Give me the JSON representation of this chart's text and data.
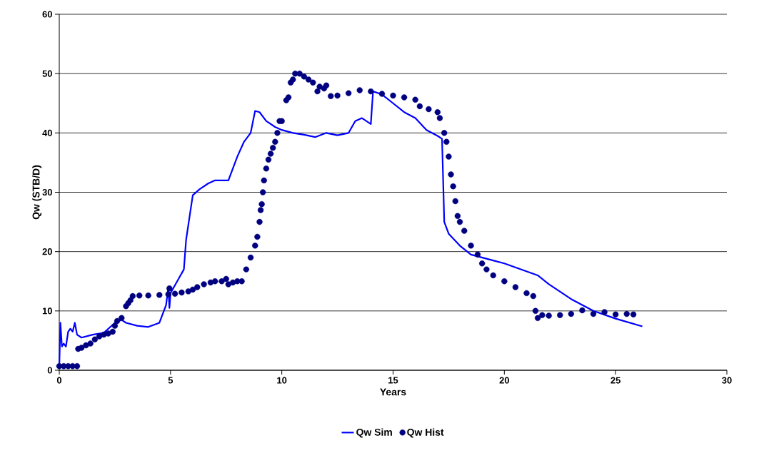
{
  "chart_data": {
    "type": "line",
    "xlabel": "Years",
    "ylabel": "Qw (STB/D)",
    "xlim": [
      0,
      30
    ],
    "ylim": [
      0,
      60
    ],
    "xticks": [
      0,
      5,
      10,
      15,
      20,
      25,
      30
    ],
    "yticks": [
      0,
      10,
      20,
      30,
      40,
      50,
      60
    ],
    "grid": "y",
    "legend": "bottom",
    "series": [
      {
        "name": "Qw Sim",
        "color": "#0000ff",
        "marker": "none",
        "x": [
          0,
          0.05,
          0.12,
          0.2,
          0.3,
          0.4,
          0.5,
          0.6,
          0.7,
          0.8,
          1.0,
          1.5,
          2.0,
          2.5,
          2.8,
          3.0,
          3.5,
          4.0,
          4.5,
          4.8,
          4.9,
          4.95,
          5.0,
          5.3,
          5.6,
          5.7,
          5.9,
          6.0,
          6.3,
          6.7,
          7.0,
          7.3,
          7.6,
          8.0,
          8.3,
          8.6,
          8.8,
          9.0,
          9.3,
          9.7,
          10.0,
          10.5,
          11.0,
          11.5,
          12.0,
          12.5,
          13.0,
          13.3,
          13.6,
          14.0,
          14.1,
          14.5,
          15.0,
          15.5,
          16.0,
          16.5,
          17.0,
          17.2,
          17.3,
          17.5,
          18.0,
          18.5,
          19.5,
          20.0,
          21.5,
          22.0,
          23.0,
          24.0,
          25.0,
          26.2
        ],
        "values": [
          0.5,
          8,
          4,
          4.5,
          4,
          6.5,
          7,
          6.5,
          8,
          6,
          5.5,
          6,
          6.3,
          8,
          8.5,
          8,
          7.5,
          7.3,
          8,
          11,
          14,
          10.5,
          13,
          15,
          17,
          22,
          27,
          29.5,
          30.5,
          31.5,
          32,
          32,
          32,
          36,
          38.5,
          40,
          43.7,
          43.5,
          42,
          41,
          40.5,
          40,
          39.7,
          39.3,
          40,
          39.6,
          40,
          42,
          42.5,
          41.5,
          47,
          46.5,
          45,
          43.5,
          42.5,
          40.5,
          39.5,
          39,
          25,
          23,
          21,
          19.5,
          18.5,
          18,
          16,
          14.5,
          12,
          10,
          8.7,
          7.4
        ]
      },
      {
        "name": "Qw Hist",
        "type": "scatter",
        "color": "#000080",
        "marker": "circle",
        "x": [
          0,
          0.2,
          0.4,
          0.6,
          0.8,
          0.85,
          1.0,
          1.2,
          1.4,
          1.6,
          1.8,
          2.0,
          2.2,
          2.4,
          2.5,
          2.6,
          2.8,
          3.0,
          3.1,
          3.2,
          3.3,
          3.6,
          4.0,
          4.5,
          4.9,
          4.95,
          5.2,
          5.5,
          5.8,
          6.0,
          6.2,
          6.5,
          6.8,
          7.0,
          7.3,
          7.5,
          7.6,
          7.8,
          8.0,
          8.2,
          8.4,
          8.6,
          8.8,
          8.9,
          9.0,
          9.05,
          9.1,
          9.15,
          9.2,
          9.3,
          9.4,
          9.5,
          9.6,
          9.7,
          9.8,
          9.9,
          10.0,
          10.2,
          10.3,
          10.4,
          10.5,
          10.6,
          10.8,
          11.0,
          11.2,
          11.4,
          11.6,
          11.7,
          11.9,
          12.0,
          12.2,
          12.5,
          13.0,
          13.5,
          14.0,
          14.5,
          15.0,
          15.5,
          16.0,
          16.2,
          16.6,
          17.0,
          17.1,
          17.3,
          17.4,
          17.5,
          17.6,
          17.7,
          17.8,
          17.9,
          18.0,
          18.2,
          18.5,
          18.8,
          19.0,
          19.2,
          19.5,
          20.0,
          20.5,
          21.0,
          21.3,
          21.4,
          21.5,
          21.7,
          22.0,
          22.5,
          23.0,
          23.5,
          24.0,
          24.5,
          25.0,
          25.5,
          25.8
        ],
        "values": [
          0.7,
          0.7,
          0.7,
          0.7,
          0.7,
          3.6,
          3.8,
          4.2,
          4.5,
          5.2,
          5.7,
          6.0,
          6.2,
          6.5,
          7.5,
          8.3,
          8.8,
          10.8,
          11.3,
          11.8,
          12.5,
          12.6,
          12.6,
          12.7,
          12.8,
          13.8,
          12.9,
          13.1,
          13.3,
          13.6,
          14,
          14.5,
          14.8,
          15,
          15,
          15.4,
          14.5,
          14.8,
          15,
          15,
          17,
          19,
          21,
          22.5,
          25,
          27,
          28,
          30,
          32,
          34,
          35.5,
          36.5,
          37.5,
          38.5,
          40,
          42,
          42,
          45.5,
          46,
          48.5,
          49,
          50,
          50,
          49.5,
          49,
          48.5,
          47,
          47.8,
          47.5,
          48,
          46.2,
          46.3,
          46.7,
          47.2,
          47,
          46.6,
          46.3,
          46,
          45.6,
          44.5,
          44,
          43.5,
          42.5,
          40,
          38.5,
          36,
          33,
          31,
          28.5,
          26,
          25,
          23.5,
          21,
          19.5,
          18,
          17,
          16,
          15,
          14,
          13,
          12.5,
          10,
          8.8,
          9.3,
          9.2,
          9.3,
          9.5,
          10.1,
          9.5,
          9.8,
          9.4,
          9.5,
          9.4
        ]
      }
    ]
  }
}
